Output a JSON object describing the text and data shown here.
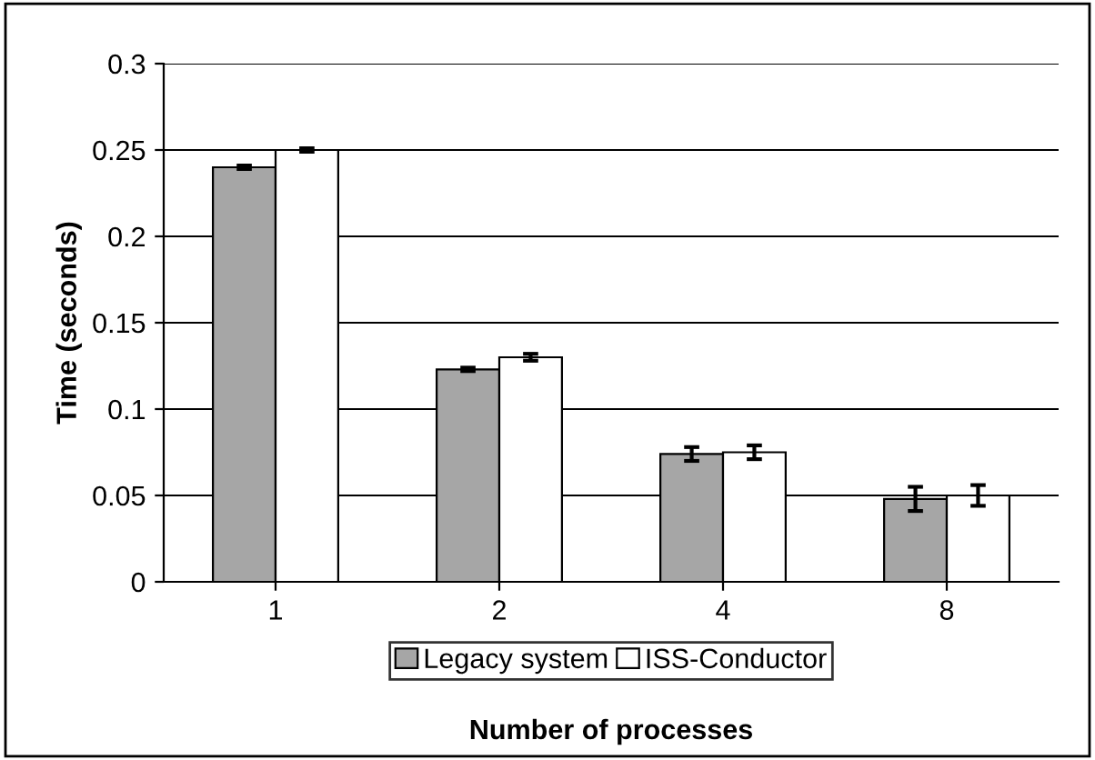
{
  "chart_data": {
    "type": "bar",
    "xlabel": "Number of processes",
    "ylabel": "Time (seconds)",
    "categories": [
      "1",
      "2",
      "4",
      "8"
    ],
    "series": [
      {
        "name": "Legacy system",
        "color": "#a6a6a6",
        "values": [
          0.24,
          0.123,
          0.074,
          0.048
        ],
        "errors": [
          0.001,
          0.001,
          0.004,
          0.007
        ]
      },
      {
        "name": "ISS-Conductor",
        "color": "#ffffff",
        "values": [
          0.25,
          0.13,
          0.075,
          0.05
        ],
        "errors": [
          0.001,
          0.002,
          0.004,
          0.006
        ]
      }
    ],
    "ylim": [
      0,
      0.3
    ],
    "yticks": [
      0,
      0.05,
      0.1,
      0.15,
      0.2,
      0.25,
      0.3
    ],
    "grid": "y",
    "legend": "bottom"
  }
}
